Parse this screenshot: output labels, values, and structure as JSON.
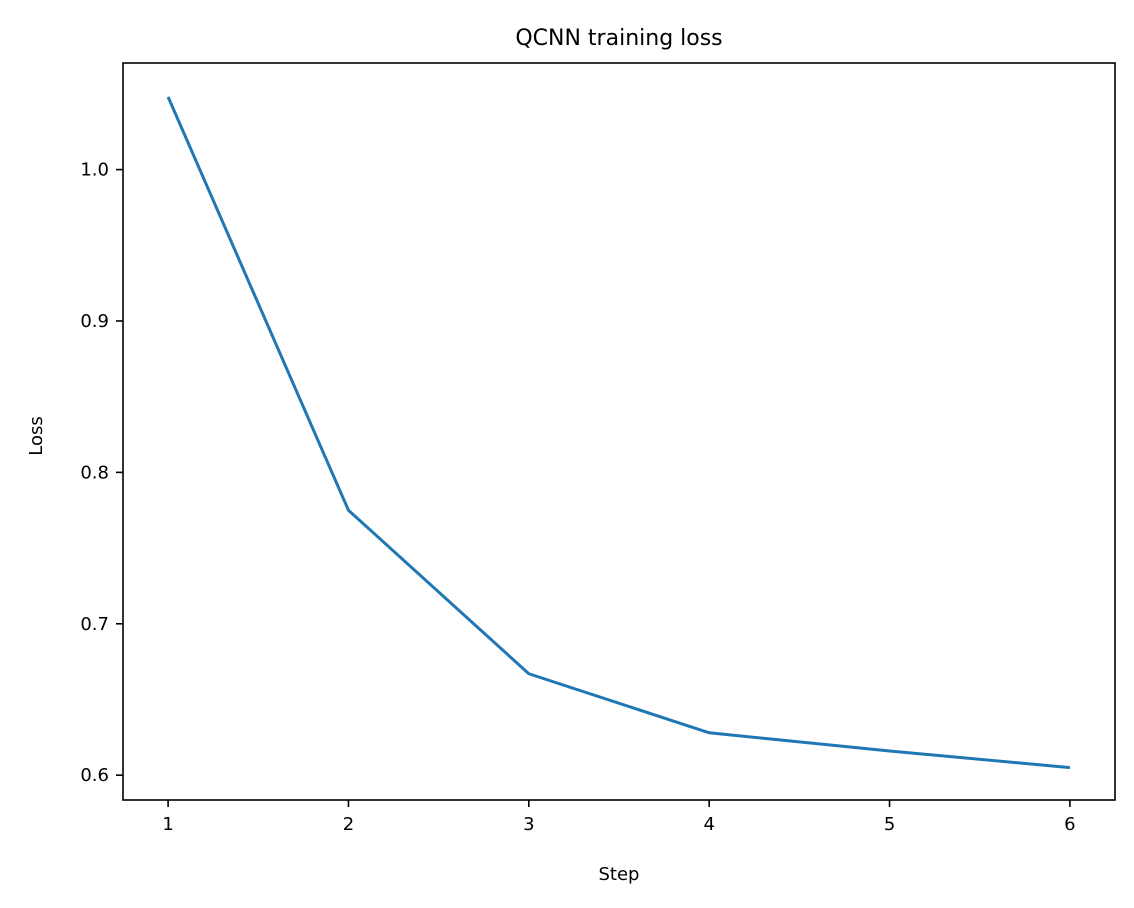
{
  "chart_data": {
    "type": "line",
    "title": "QCNN training loss",
    "xlabel": "Step",
    "ylabel": "Loss",
    "xlim": [
      0.75,
      6.25
    ],
    "ylim": [
      0.5836,
      1.0704
    ],
    "xticks": [
      1,
      2,
      3,
      4,
      5,
      6
    ],
    "xtick_labels": [
      "1",
      "2",
      "3",
      "4",
      "5",
      "6"
    ],
    "yticks": [
      0.6,
      0.7,
      0.8,
      0.9,
      1.0
    ],
    "ytick_labels": [
      "0.6",
      "0.7",
      "0.8",
      "0.9",
      "1.0"
    ],
    "grid": false,
    "series": [
      {
        "x": [
          1,
          2,
          3,
          4,
          5,
          6
        ],
        "values": [
          1.048,
          0.775,
          0.667,
          0.628,
          0.616,
          0.605
        ],
        "color": "#1f77b4"
      }
    ]
  }
}
